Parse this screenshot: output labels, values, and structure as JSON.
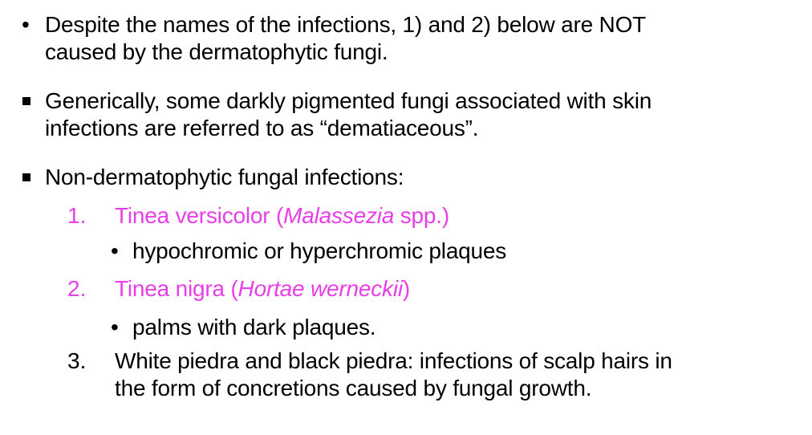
{
  "slide": {
    "point1": {
      "line1": "Despite the names of the infections, 1) and 2) below are NOT",
      "line2": "caused by the dermatophytic fungi."
    },
    "point2": {
      "line1": "Generically, some darkly pigmented fungi associated with skin",
      "line2": "infections are referred to as “dematiaceous”."
    },
    "point3": {
      "text": "Non-dermatophytic fungal infections:"
    },
    "list": [
      {
        "number": "1.",
        "name_prefix": "Tinea versicolor (",
        "species": "Malassezia",
        "name_suffix": " spp.)",
        "sub": "hypochromic or hyperchromic plaques"
      },
      {
        "number": "2.",
        "name_prefix": "Tinea nigra (",
        "species": "Hortae werneckii",
        "name_suffix": ")",
        "sub": "palms with dark plaques."
      },
      {
        "number": "3.",
        "line1": "White piedra and black piedra: infections of scalp hairs in",
        "line2": "the form of concretions caused by fungal growth."
      }
    ],
    "colors": {
      "text": "#000000",
      "accent": "#e83ee8",
      "background": "#ffffff"
    }
  }
}
